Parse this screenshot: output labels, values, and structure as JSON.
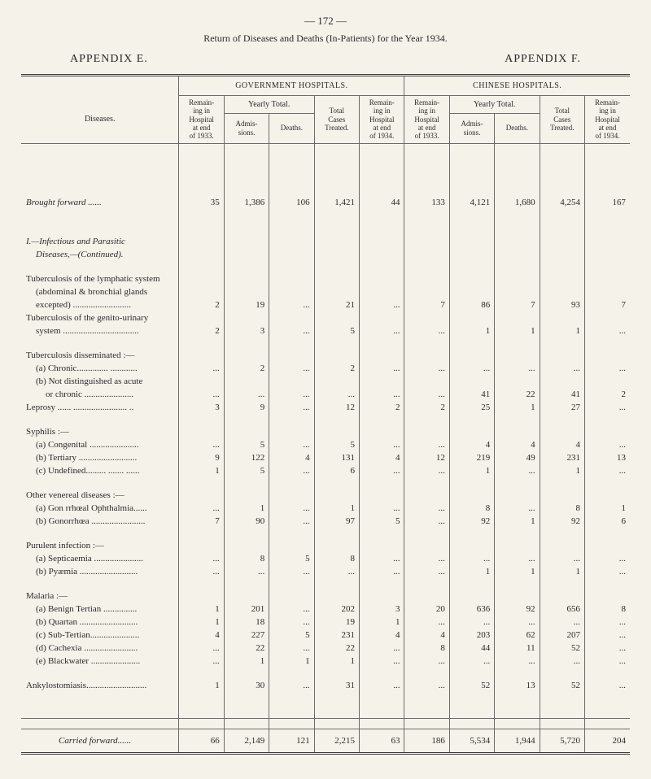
{
  "page_number": "— 172 —",
  "caption": "Return of Diseases and Deaths (In-Patients) for the Year 1934.",
  "appendix_left": "APPENDIX E.",
  "appendix_right": "APPENDIX F.",
  "header": {
    "gov": "GOVERNMENT HOSPITALS.",
    "chi": "CHINESE HOSPITALS.",
    "diseases": "Diseases.",
    "remain_begin": "Remain-\ning in\nHospital\nat end\nof 1933.",
    "yearly": "Yearly Total.",
    "admis": "Admis-\nsions.",
    "deaths": "Deaths.",
    "total_treated": "Total\nCases\nTreated.",
    "remain_end": "Remain-\ning in\nHospital\nat end\nof 1934."
  },
  "rows": [
    {
      "label": "Brought forward ......",
      "cls": "italic",
      "g": [
        "35",
        "1,386",
        "106",
        "1,421",
        "44"
      ],
      "c": [
        "133",
        "4,121",
        "1,680",
        "4,254",
        "167"
      ]
    },
    {
      "label": "I.—Infectious and Parasitic",
      "cls": "section-title",
      "g": [
        "",
        "",
        "",
        "",
        ""
      ],
      "c": [
        "",
        "",
        "",
        "",
        ""
      ]
    },
    {
      "label": "Diseases,—(Continued).",
      "cls": "section-title indent1",
      "g": [
        "",
        "",
        "",
        "",
        ""
      ],
      "c": [
        "",
        "",
        "",
        "",
        ""
      ]
    },
    {
      "label": "Tuberculosis of the lymphatic system",
      "g": [
        "",
        "",
        "",
        "",
        ""
      ],
      "c": [
        "",
        "",
        "",
        "",
        ""
      ]
    },
    {
      "label": "(abdominal & bronchial glands",
      "indent": 1,
      "g": [
        "",
        "",
        "",
        "",
        ""
      ],
      "c": [
        "",
        "",
        "",
        "",
        ""
      ]
    },
    {
      "label": "excepted) ..........................",
      "indent": 1,
      "g": [
        "2",
        "19",
        "...",
        "21",
        "..."
      ],
      "c": [
        "7",
        "86",
        "7",
        "93",
        "7"
      ]
    },
    {
      "label": "Tuberculosis of the genito-urinary",
      "g": [
        "",
        "",
        "",
        "",
        ""
      ],
      "c": [
        "",
        "",
        "",
        "",
        ""
      ]
    },
    {
      "label": "system ..................................",
      "indent": 1,
      "g": [
        "2",
        "3",
        "...",
        "5",
        "..."
      ],
      "c": [
        "...",
        "1",
        "1",
        "1",
        "..."
      ]
    },
    {
      "label": "Tuberculosis disseminated :—",
      "g": [
        "",
        "",
        "",
        "",
        ""
      ],
      "c": [
        "",
        "",
        "",
        "",
        ""
      ]
    },
    {
      "label": "(a) Chronic.............. ............",
      "indent": 1,
      "g": [
        "...",
        "2",
        "...",
        "2",
        "..."
      ],
      "c": [
        "...",
        "...",
        "...",
        "...",
        "..."
      ]
    },
    {
      "label": "(b) Not distinguished as acute",
      "indent": 1,
      "g": [
        "",
        "",
        "",
        "",
        ""
      ],
      "c": [
        "",
        "",
        "",
        "",
        ""
      ]
    },
    {
      "label": "or chronic ......................",
      "indent": 2,
      "g": [
        "...",
        "...",
        "...",
        "...",
        "..."
      ],
      "c": [
        "...",
        "41",
        "22",
        "41",
        "2"
      ]
    },
    {
      "label": "Leprosy ...... ........................ ..",
      "g": [
        "3",
        "9",
        "...",
        "12",
        "2"
      ],
      "c": [
        "2",
        "25",
        "1",
        "27",
        "..."
      ]
    },
    {
      "label": "Syphilis :—",
      "g": [
        "",
        "",
        "",
        "",
        ""
      ],
      "c": [
        "",
        "",
        "",
        "",
        ""
      ]
    },
    {
      "label": "(a) Congenital ......................",
      "indent": 1,
      "g": [
        "...",
        "5",
        "...",
        "5",
        "..."
      ],
      "c": [
        "...",
        "4",
        "4",
        "4",
        "..."
      ]
    },
    {
      "label": "(b) Tertiary ..........................",
      "indent": 1,
      "g": [
        "9",
        "122",
        "4",
        "131",
        "4"
      ],
      "c": [
        "12",
        "219",
        "49",
        "231",
        "13"
      ]
    },
    {
      "label": "(c) Undefined......... ....... ......",
      "indent": 1,
      "g": [
        "1",
        "5",
        "...",
        "6",
        "..."
      ],
      "c": [
        "...",
        "1",
        "...",
        "1",
        "..."
      ]
    },
    {
      "label": "Other venereal diseases :—",
      "g": [
        "",
        "",
        "",
        "",
        ""
      ],
      "c": [
        "",
        "",
        "",
        "",
        ""
      ]
    },
    {
      "label": "(a) Gon rrhœal Ophthalmia......",
      "indent": 1,
      "g": [
        "...",
        "1",
        "...",
        "1",
        "..."
      ],
      "c": [
        "...",
        "8",
        "...",
        "8",
        "1"
      ]
    },
    {
      "label": "(b) Gonorrhœa ........................",
      "indent": 1,
      "g": [
        "7",
        "90",
        "...",
        "97",
        "5"
      ],
      "c": [
        "...",
        "92",
        "1",
        "92",
        "6"
      ]
    },
    {
      "label": "Purulent infection :—",
      "g": [
        "",
        "",
        "",
        "",
        ""
      ],
      "c": [
        "",
        "",
        "",
        "",
        ""
      ]
    },
    {
      "label": "(a) Septicaemia ......................",
      "indent": 1,
      "g": [
        "...",
        "8",
        "5",
        "8",
        "..."
      ],
      "c": [
        "...",
        "...",
        "...",
        "...",
        "..."
      ]
    },
    {
      "label": "(b) Pyæmia ..........................",
      "indent": 1,
      "g": [
        "...",
        "...",
        "...",
        "...",
        "..."
      ],
      "c": [
        "...",
        "1",
        "1",
        "1",
        "..."
      ]
    },
    {
      "label": "Malaria :—",
      "g": [
        "",
        "",
        "",
        "",
        ""
      ],
      "c": [
        "",
        "",
        "",
        "",
        ""
      ]
    },
    {
      "label": "(a) Benign Tertian ...............",
      "indent": 1,
      "g": [
        "1",
        "201",
        "...",
        "202",
        "3"
      ],
      "c": [
        "20",
        "636",
        "92",
        "656",
        "8"
      ]
    },
    {
      "label": "(b) Quartan ..........................",
      "indent": 1,
      "g": [
        "1",
        "18",
        "...",
        "19",
        "1"
      ],
      "c": [
        "...",
        "...",
        "...",
        "...",
        "..."
      ]
    },
    {
      "label": "(c) Sub-Tertian......................",
      "indent": 1,
      "g": [
        "4",
        "227",
        "5",
        "231",
        "4"
      ],
      "c": [
        "4",
        "203",
        "62",
        "207",
        "..."
      ]
    },
    {
      "label": "(d) Cachexia ........................",
      "indent": 1,
      "g": [
        "...",
        "22",
        "...",
        "22",
        "..."
      ],
      "c": [
        "8",
        "44",
        "11",
        "52",
        "..."
      ]
    },
    {
      "label": "(e) Blackwater ......................",
      "indent": 1,
      "g": [
        "...",
        "1",
        "1",
        "1",
        "..."
      ],
      "c": [
        "...",
        "...",
        "...",
        "...",
        "..."
      ]
    },
    {
      "label": "Ankylostomiasis...........................",
      "g": [
        "1",
        "30",
        "...",
        "31",
        "..."
      ],
      "c": [
        "...",
        "52",
        "13",
        "52",
        "..."
      ]
    }
  ],
  "carried": {
    "label": "Carried forward......",
    "g": [
      "66",
      "2,149",
      "121",
      "2,215",
      "63"
    ],
    "c": [
      "186",
      "5,534",
      "1,944",
      "5,720",
      "204"
    ]
  }
}
